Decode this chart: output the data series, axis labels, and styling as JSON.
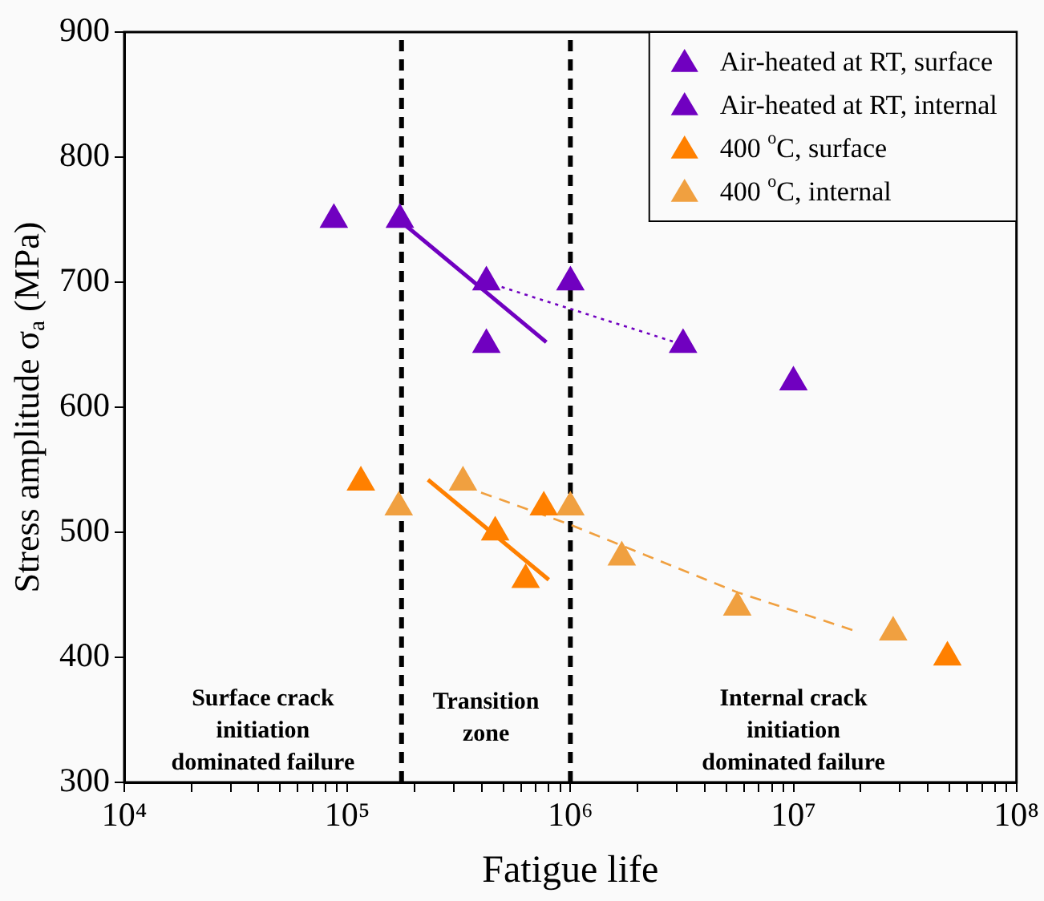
{
  "chart_data": {
    "type": "scatter",
    "xlabel": "Fatigue life",
    "ylabel": "Stress amplitude σ$_{a}$ (MPa)",
    "log": "x",
    "grid": false,
    "legend": "top right",
    "xlim": [
      10000,
      100000000
    ],
    "ylim": [
      300,
      900
    ],
    "xticks": [
      {
        "value": 10000,
        "label": "10⁴"
      },
      {
        "value": 20000,
        "label": null
      },
      {
        "value": 30000,
        "label": null
      },
      {
        "value": 40000,
        "label": null
      },
      {
        "value": 50000,
        "label": null
      },
      {
        "value": 60000,
        "label": null
      },
      {
        "value": 70000,
        "label": null
      },
      {
        "value": 80000,
        "label": null
      },
      {
        "value": 90000,
        "label": null
      },
      {
        "value": 100000,
        "label": "10⁵"
      },
      {
        "value": 200000,
        "label": null
      },
      {
        "value": 300000,
        "label": null
      },
      {
        "value": 400000,
        "label": null
      },
      {
        "value": 500000,
        "label": null
      },
      {
        "value": 600000,
        "label": null
      },
      {
        "value": 700000,
        "label": null
      },
      {
        "value": 800000,
        "label": null
      },
      {
        "value": 900000,
        "label": null
      },
      {
        "value": 1000000,
        "label": "10⁶"
      },
      {
        "value": 2000000,
        "label": null
      },
      {
        "value": 3000000,
        "label": null
      },
      {
        "value": 4000000,
        "label": null
      },
      {
        "value": 5000000,
        "label": null
      },
      {
        "value": 6000000,
        "label": null
      },
      {
        "value": 7000000,
        "label": null
      },
      {
        "value": 8000000,
        "label": null
      },
      {
        "value": 9000000,
        "label": null
      },
      {
        "value": 10000000,
        "label": "10⁷"
      },
      {
        "value": 20000000,
        "label": null
      },
      {
        "value": 30000000,
        "label": null
      },
      {
        "value": 40000000,
        "label": null
      },
      {
        "value": 50000000,
        "label": null
      },
      {
        "value": 60000000,
        "label": null
      },
      {
        "value": 70000000,
        "label": null
      },
      {
        "value": 80000000,
        "label": null
      },
      {
        "value": 90000000,
        "label": null
      },
      {
        "value": 100000000,
        "label": "10⁸"
      }
    ],
    "yticks": [
      300,
      400,
      500,
      600,
      700,
      800,
      900
    ],
    "series": [
      {
        "name": "Air-heated at RT, surface",
        "color": "#7000c0",
        "marker": "triangle",
        "x": [
          87000,
          172000,
          420000,
          1000000,
          10000000
        ],
        "values": [
          750,
          750,
          650,
          700,
          620
        ]
      },
      {
        "name": "Air-heated at RT, internal",
        "color": "#7000c0",
        "marker": "triangle",
        "x": [
          420000,
          3200000
        ],
        "values": [
          700,
          650
        ]
      },
      {
        "name": "400 $^{o}$C, surface",
        "color": "#ff8000",
        "marker": "triangle",
        "x": [
          115000,
          460000,
          630000,
          760000,
          49000000
        ],
        "values": [
          540,
          500,
          462,
          520,
          400
        ]
      },
      {
        "name": "400 $^{o}$C, internal",
        "color": "#f0a040",
        "marker": "triangle",
        "x": [
          170000,
          330000,
          1000000,
          1700000,
          5600000,
          28000000
        ],
        "values": [
          520,
          540,
          520,
          480,
          440,
          420
        ]
      },
      {
        "type": "line",
        "color": "#7000c0",
        "marker": "none",
        "line_style": "solid",
        "x": [
          175000,
          780000
        ],
        "values": [
          748,
          652
        ]
      },
      {
        "type": "line",
        "color": "#7000c0",
        "marker": "none",
        "line_style": "dotted",
        "x": [
          420000,
          3200000
        ],
        "values": [
          700,
          650
        ]
      },
      {
        "type": "line",
        "color": "#ff8000",
        "marker": "none",
        "line_style": "solid",
        "x": [
          230000,
          800000
        ],
        "values": [
          542,
          462
        ]
      },
      {
        "type": "line",
        "color": "#f0a040",
        "marker": "none",
        "line_style": "dashed",
        "x": [
          330000,
          1000000,
          5600000,
          19000000
        ],
        "values": [
          537,
          506,
          452,
          421
        ]
      }
    ],
    "ref_lines": [
      {
        "axis": "x",
        "value": 175000,
        "color": "#000000",
        "line_style": "dashed"
      },
      {
        "axis": "x",
        "value": 1000000,
        "color": "#000000",
        "line_style": "dashed"
      }
    ],
    "annotations": [
      "Surface crack\ninitiation\ndominated failure",
      "Transition\nzone",
      "Internal crack\ninitiation\ndominated failure"
    ]
  }
}
